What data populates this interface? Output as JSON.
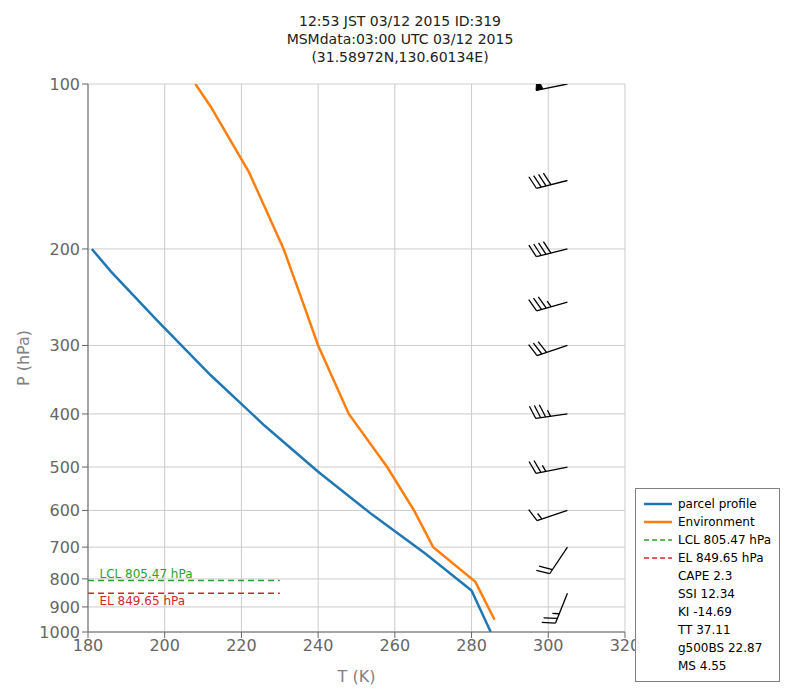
{
  "chart_data": {
    "type": "line",
    "title": "12:53 JST 03/12 2015  ID:319\nMSMdata:03:00 UTC 03/12 2015\n(31.58972N,130.60134E)",
    "x_label": "T (K)",
    "y_label": "P (hPa)",
    "xlim": [
      180,
      320
    ],
    "xticks": [
      180,
      200,
      220,
      240,
      260,
      280,
      300,
      320
    ],
    "ylim": [
      1000,
      100
    ],
    "yticks": [
      100,
      200,
      300,
      400,
      500,
      600,
      700,
      800,
      900,
      1000
    ],
    "log": "y",
    "grid": true,
    "legend": "lower right",
    "series": [
      {
        "name": "parcel profile",
        "color": "#1f77b4",
        "line_style": "solid",
        "x": [
          181,
          186,
          198,
          212,
          226,
          240,
          254,
          268,
          280,
          285
        ],
        "values": [
          200,
          220,
          270,
          340,
          420,
          510,
          610,
          720,
          840,
          1000
        ]
      },
      {
        "name": "Environment",
        "color": "#ff7f0e",
        "line_style": "solid",
        "x": [
          208,
          212,
          222,
          231,
          236,
          240,
          248,
          258,
          265,
          270,
          281,
          286
        ],
        "values": [
          100,
          110,
          145,
          200,
          250,
          300,
          400,
          500,
          600,
          700,
          810,
          950
        ]
      },
      {
        "name": "LCL 805.47 hPa",
        "color": "#2ca02c",
        "line_style": "dashed",
        "x": [
          180,
          230
        ],
        "values": [
          805.47,
          805.47
        ]
      },
      {
        "name": "EL 849.65 hPa",
        "color": "#d62728",
        "line_style": "dashed",
        "x": [
          180,
          230
        ],
        "values": [
          849.65,
          849.65
        ]
      }
    ],
    "annotations": [
      {
        "text": "LCL 805.47 hPa",
        "x": 183,
        "y": 805.47,
        "color": "#2ca02c"
      },
      {
        "text": "EL 849.65 hPa",
        "x": 183,
        "y": 849.65,
        "color": "#d62728"
      }
    ],
    "wind": {
      "x": 305,
      "p": [
        100,
        150,
        200,
        250,
        300,
        400,
        500,
        600,
        700,
        850
      ],
      "u": [
        50,
        40,
        40,
        35,
        30,
        35,
        25,
        15,
        10,
        10
      ],
      "v": [
        10,
        10,
        10,
        10,
        10,
        5,
        5,
        5,
        15,
        25
      ]
    },
    "legend_extra": [
      "CAPE 2.3",
      "SSI 12.34",
      "KI -14.69",
      "TT 37.11",
      "g500BS 22.87",
      "MS 4.55"
    ]
  }
}
